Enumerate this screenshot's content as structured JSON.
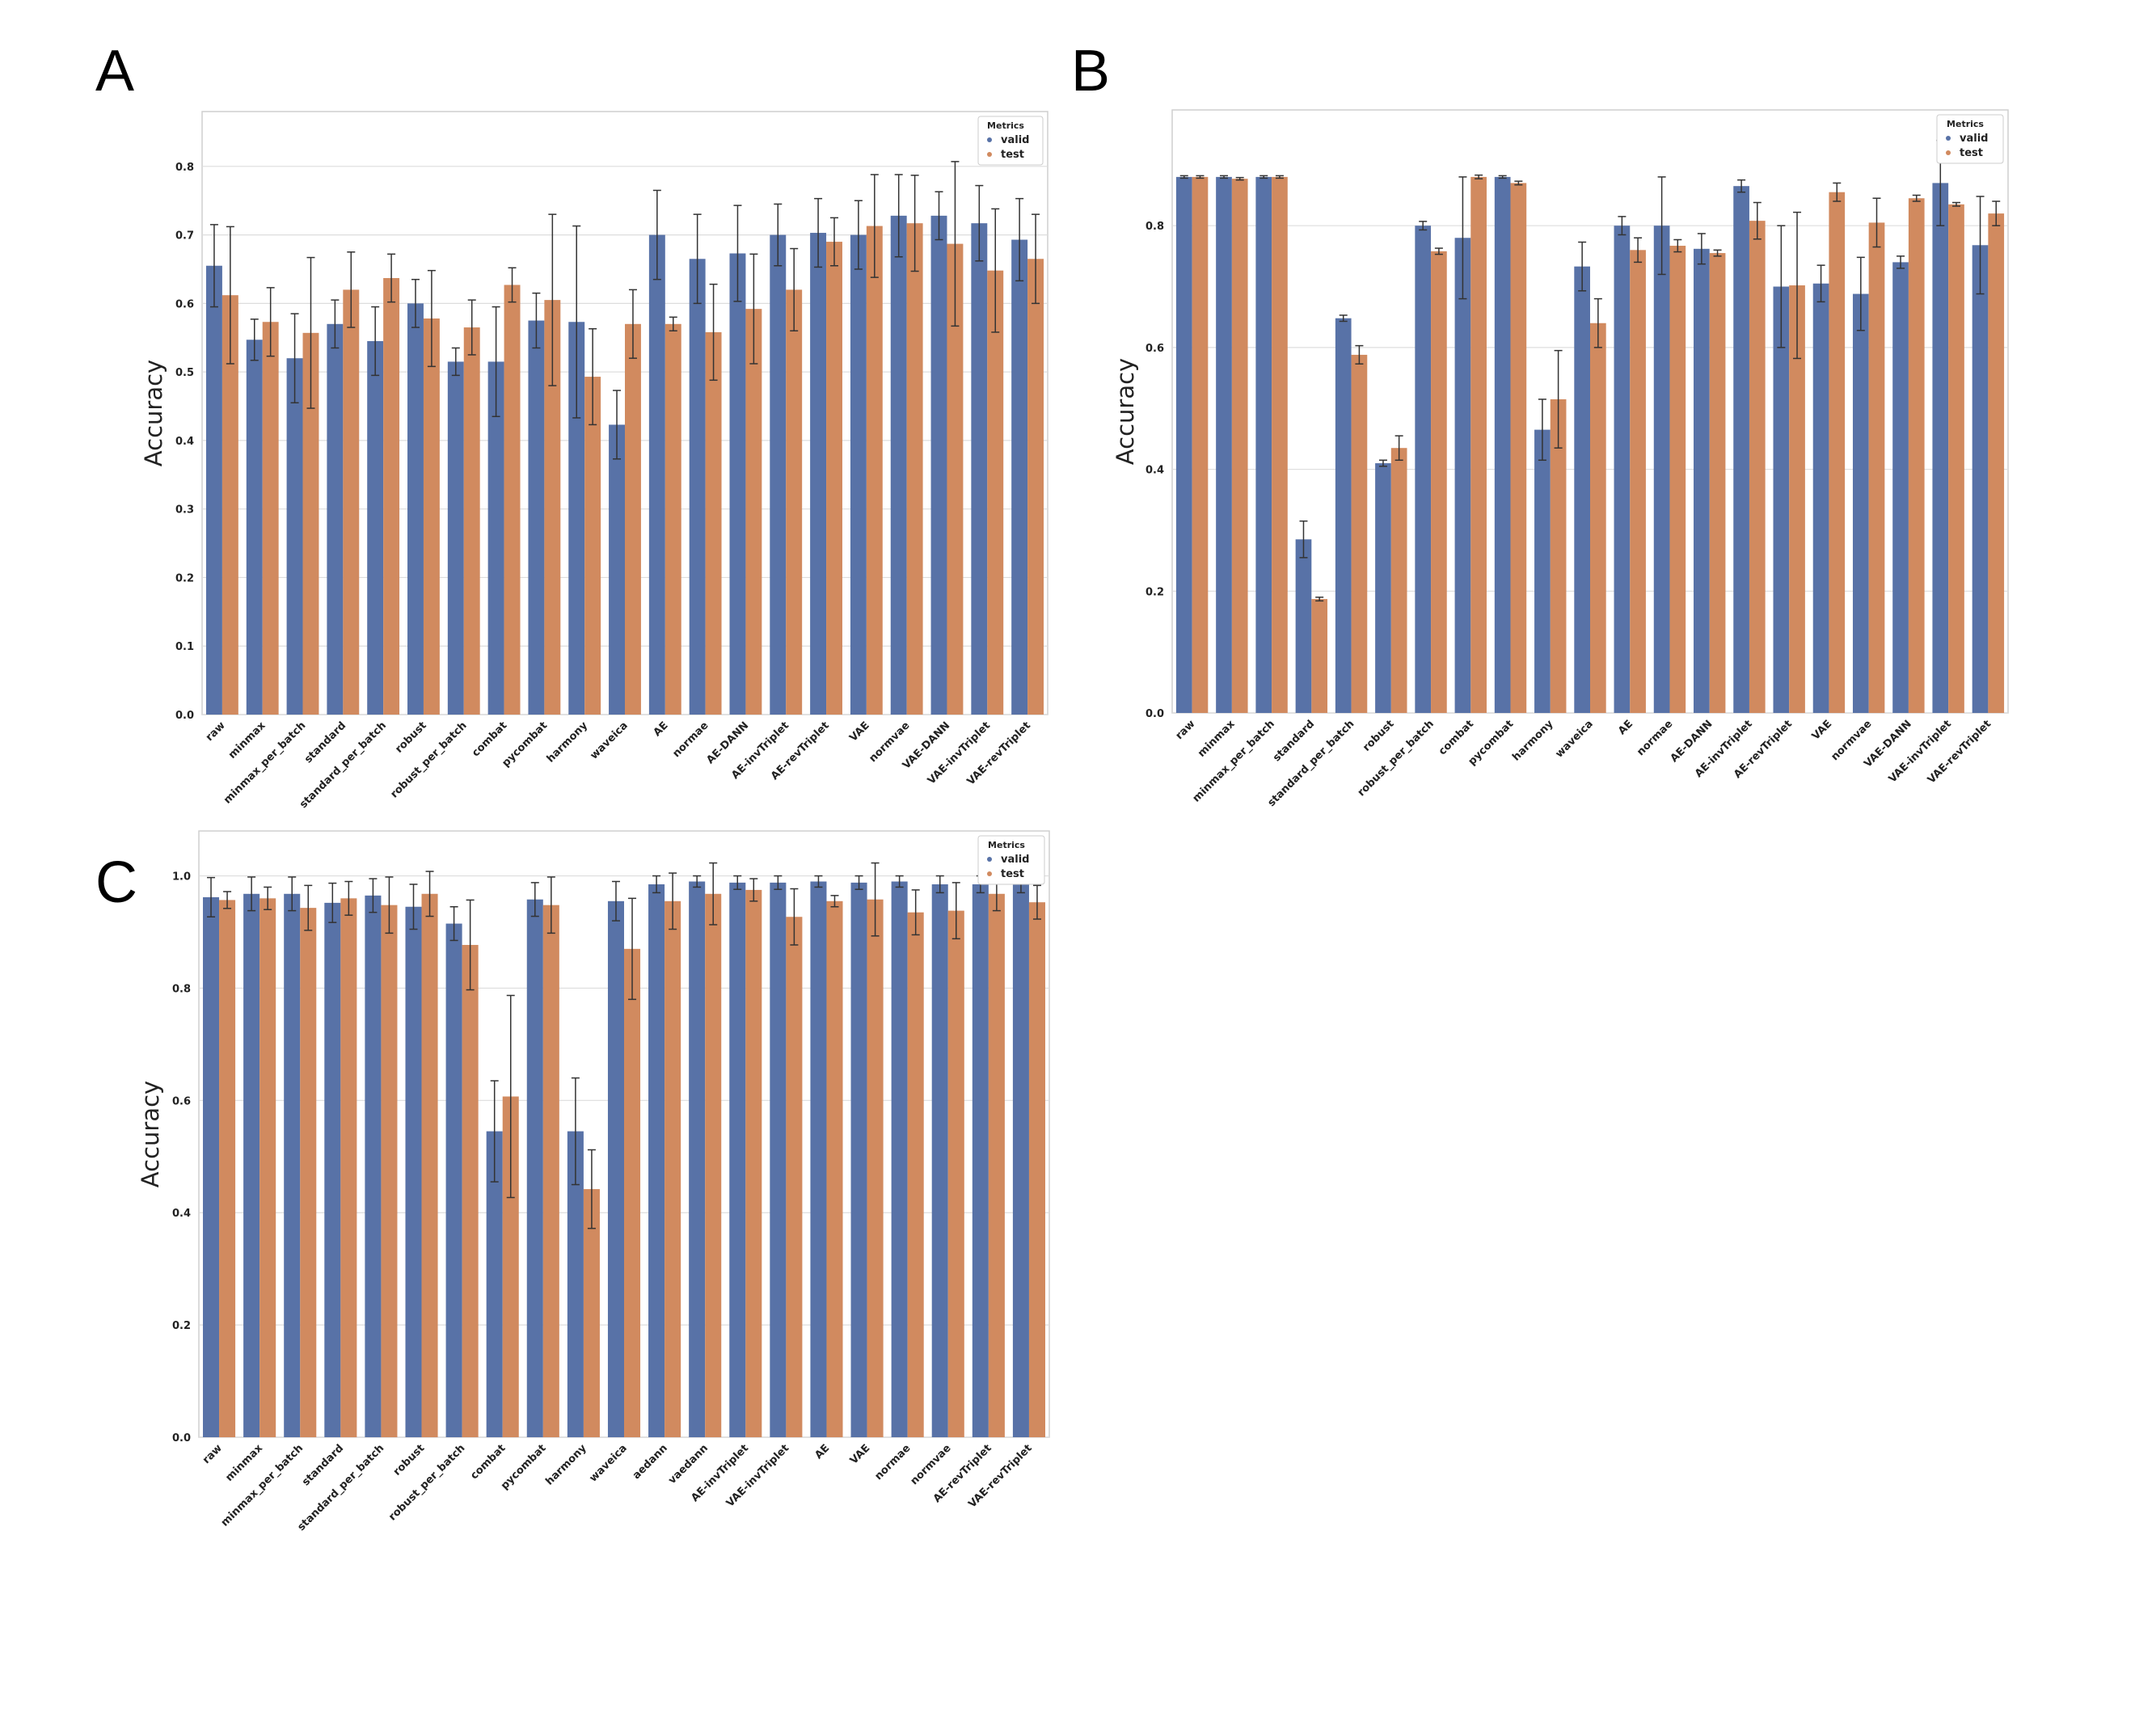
{
  "figure": {
    "colors": {
      "valid": "#5872a7",
      "test": "#d18a5f",
      "error": "#333333",
      "grid": "#dddddd",
      "frame": "#cfcfcf"
    }
  },
  "chart_data": [
    {
      "panel": "A",
      "type": "bar",
      "ylabel": "Accuracy",
      "ylim": [
        0.0,
        0.88
      ],
      "yticks": [
        "0.0",
        "0.1",
        "0.2",
        "0.3",
        "0.4",
        "0.5",
        "0.6",
        "0.7",
        "0.8"
      ],
      "grid": true,
      "legend": {
        "title": "Metrics",
        "position": "top-right",
        "entries": [
          "valid",
          "test"
        ]
      },
      "categories": [
        "raw",
        "minmax",
        "minmax_per_batch",
        "standard",
        "standard_per_batch",
        "robust",
        "robust_per_batch",
        "combat",
        "pycombat",
        "harmony",
        "waveica",
        "AE",
        "normae",
        "AE-DANN",
        "AE-invTriplet",
        "AE-revTriplet",
        "VAE",
        "normvae",
        "VAE-DANN",
        "VAE-invTriplet",
        "VAE-revTriplet"
      ],
      "series": [
        {
          "name": "valid",
          "values": [
            0.655,
            0.547,
            0.52,
            0.57,
            0.545,
            0.6,
            0.515,
            0.515,
            0.575,
            0.573,
            0.423,
            0.7,
            0.665,
            0.673,
            0.7,
            0.703,
            0.7,
            0.728,
            0.728,
            0.717,
            0.693
          ],
          "errors": [
            0.06,
            0.03,
            0.065,
            0.035,
            0.05,
            0.035,
            0.02,
            0.08,
            0.04,
            0.14,
            0.05,
            0.065,
            0.065,
            0.07,
            0.045,
            0.05,
            0.05,
            0.06,
            0.035,
            0.055,
            0.06
          ]
        },
        {
          "name": "test",
          "values": [
            0.612,
            0.573,
            0.557,
            0.62,
            0.637,
            0.578,
            0.565,
            0.627,
            0.605,
            0.493,
            0.57,
            0.57,
            0.558,
            0.592,
            0.62,
            0.69,
            0.713,
            0.717,
            0.687,
            0.648,
            0.665
          ],
          "errors": [
            0.1,
            0.05,
            0.11,
            0.055,
            0.035,
            0.07,
            0.04,
            0.025,
            0.125,
            0.07,
            0.05,
            0.01,
            0.07,
            0.08,
            0.06,
            0.035,
            0.075,
            0.07,
            0.12,
            0.09,
            0.065
          ]
        }
      ]
    },
    {
      "panel": "B",
      "type": "bar",
      "ylabel": "Accuracy",
      "ylim": [
        0.0,
        0.99
      ],
      "yticks": [
        "0.0",
        "0.2",
        "0.4",
        "0.6",
        "0.8"
      ],
      "grid": true,
      "legend": {
        "title": "Metrics",
        "position": "top-right",
        "entries": [
          "valid",
          "test"
        ]
      },
      "categories": [
        "raw",
        "minmax",
        "minmax_per_batch",
        "standard",
        "standard_per_batch",
        "robust",
        "robust_per_batch",
        "combat",
        "pycombat",
        "harmony",
        "waveica",
        "AE",
        "normae",
        "AE-DANN",
        "AE-invTriplet",
        "AE-revTriplet",
        "VAE",
        "normvae",
        "VAE-DANN",
        "VAE-invTriplet",
        "VAE-revTriplet"
      ],
      "series": [
        {
          "name": "valid",
          "values": [
            0.88,
            0.88,
            0.88,
            0.285,
            0.648,
            0.41,
            0.8,
            0.78,
            0.88,
            0.465,
            0.733,
            0.8,
            0.8,
            0.762,
            0.865,
            0.7,
            0.705,
            0.688,
            0.74,
            0.87,
            0.768
          ],
          "errors": [
            0.002,
            0.002,
            0.002,
            0.03,
            0.005,
            0.005,
            0.007,
            0.1,
            0.002,
            0.05,
            0.04,
            0.015,
            0.08,
            0.025,
            0.01,
            0.1,
            0.03,
            0.06,
            0.01,
            0.07,
            0.08
          ]
        },
        {
          "name": "test",
          "values": [
            0.88,
            0.877,
            0.88,
            0.187,
            0.588,
            0.435,
            0.758,
            0.88,
            0.87,
            0.515,
            0.64,
            0.76,
            0.767,
            0.755,
            0.808,
            0.702,
            0.855,
            0.805,
            0.845,
            0.835,
            0.82
          ],
          "errors": [
            0.002,
            0.002,
            0.002,
            0.003,
            0.015,
            0.02,
            0.005,
            0.003,
            0.003,
            0.08,
            0.04,
            0.02,
            0.01,
            0.005,
            0.03,
            0.12,
            0.015,
            0.04,
            0.005,
            0.003,
            0.02
          ]
        }
      ]
    },
    {
      "panel": "C",
      "type": "bar",
      "ylabel": "Accuracy",
      "ylim": [
        0.0,
        1.08
      ],
      "yticks": [
        "0.0",
        "0.2",
        "0.4",
        "0.6",
        "0.8",
        "1.0"
      ],
      "grid": true,
      "legend": {
        "title": "Metrics",
        "position": "top-right",
        "entries": [
          "valid",
          "test"
        ]
      },
      "categories": [
        "raw",
        "minmax",
        "minmax_per_batch",
        "standard",
        "standard_per_batch",
        "robust",
        "robust_per_batch",
        "combat",
        "pycombat",
        "harmony",
        "waveica",
        "aedann",
        "vaedann",
        "AE-invTriplet",
        "VAE-invTriplet",
        "AE",
        "VAE",
        "normae",
        "normvae",
        "AE-revTriplet",
        "VAE-revTriplet"
      ],
      "series": [
        {
          "name": "valid",
          "values": [
            0.962,
            0.968,
            0.968,
            0.952,
            0.965,
            0.945,
            0.915,
            0.545,
            0.958,
            0.545,
            0.955,
            0.985,
            0.99,
            0.988,
            0.988,
            0.99,
            0.988,
            0.99,
            0.985,
            0.985,
            0.985
          ],
          "errors": [
            0.035,
            0.03,
            0.03,
            0.035,
            0.03,
            0.04,
            0.03,
            0.09,
            0.03,
            0.095,
            0.035,
            0.015,
            0.01,
            0.012,
            0.012,
            0.01,
            0.012,
            0.01,
            0.015,
            0.015,
            0.015
          ]
        },
        {
          "name": "test",
          "values": [
            0.957,
            0.96,
            0.943,
            0.96,
            0.948,
            0.968,
            0.877,
            0.607,
            0.948,
            0.442,
            0.87,
            0.955,
            0.968,
            0.975,
            0.927,
            0.955,
            0.958,
            0.935,
            0.938,
            0.968,
            0.953
          ],
          "errors": [
            0.015,
            0.02,
            0.04,
            0.03,
            0.05,
            0.04,
            0.08,
            0.18,
            0.05,
            0.07,
            0.09,
            0.05,
            0.055,
            0.02,
            0.05,
            0.01,
            0.065,
            0.04,
            0.05,
            0.03,
            0.03
          ]
        }
      ]
    }
  ],
  "panels": [
    {
      "letter": "A"
    },
    {
      "letter": "B"
    },
    {
      "letter": "C"
    }
  ]
}
